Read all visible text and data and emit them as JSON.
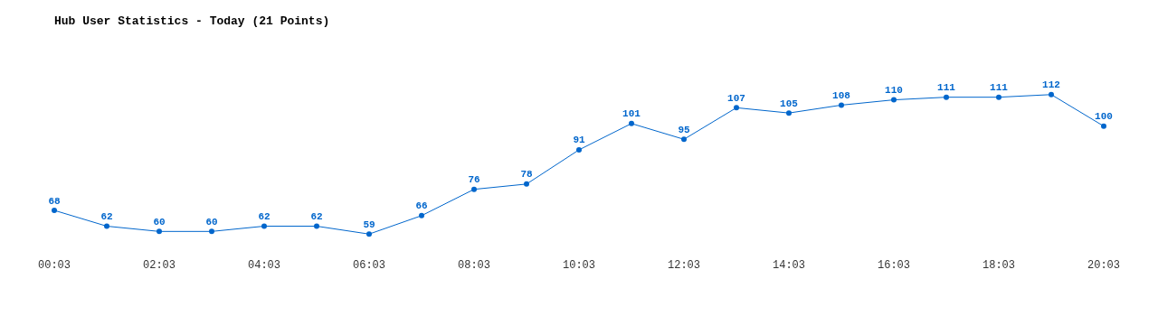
{
  "chart_data": {
    "type": "line",
    "title": "Hub User Statistics - Today (21 Points)",
    "x": [
      0.05,
      1.05,
      2.05,
      3.05,
      4.05,
      5.05,
      6.05,
      7.05,
      8.05,
      9.05,
      10.05,
      11.05,
      12.05,
      13.05,
      14.05,
      15.05,
      16.05,
      17.05,
      18.05,
      19.05,
      20.05
    ],
    "series": [
      {
        "color": "#0066cc",
        "values": [
          68,
          62,
          60,
          60,
          62,
          62,
          59,
          66,
          76,
          78,
          91,
          101,
          95,
          107,
          105,
          108,
          110,
          111,
          111,
          112,
          100
        ]
      }
    ],
    "xlim": [
      0.05,
      20.05
    ],
    "xticks": [
      {
        "value": 0.05,
        "label": "00:03"
      },
      {
        "value": 2.05,
        "label": "02:03"
      },
      {
        "value": 4.05,
        "label": "04:03"
      },
      {
        "value": 6.05,
        "label": "06:03"
      },
      {
        "value": 8.05,
        "label": "08:03"
      },
      {
        "value": 10.05,
        "label": "10:03"
      },
      {
        "value": 12.05,
        "label": "12:03"
      },
      {
        "value": 14.05,
        "label": "14:03"
      },
      {
        "value": 16.05,
        "label": "16:03"
      },
      {
        "value": 18.05,
        "label": "18:03"
      },
      {
        "value": 20.05,
        "label": "20:03"
      }
    ],
    "tick_labels": "x",
    "grid": false,
    "legend": false,
    "marker": "circle",
    "line_style": "solid",
    "data_labels": true
  }
}
